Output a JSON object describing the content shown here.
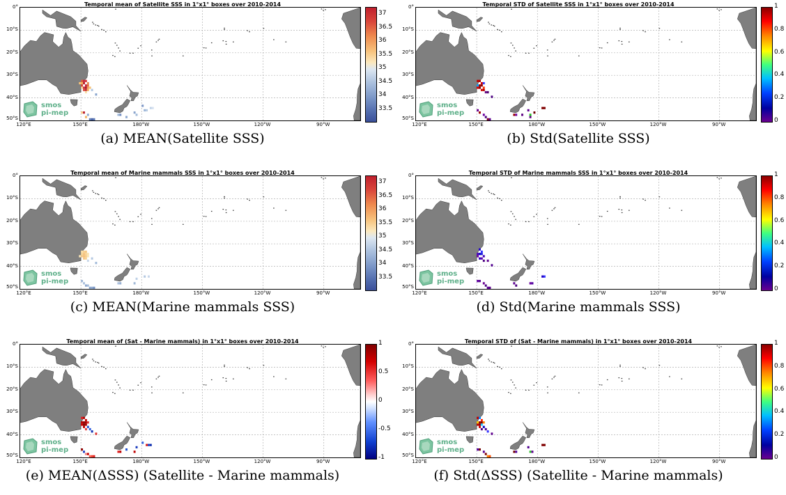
{
  "panels": [
    {
      "title": "Temporal mean of Satellite SSS in 1°x1° boxes over 2010-2014",
      "caption": "(a) MEAN(Satellite SSS)",
      "colorbar": "mean_sss",
      "ticks": [
        "37",
        "36.5",
        "36",
        "35.5",
        "35",
        "34.5",
        "34",
        "33.5"
      ],
      "cells": "a"
    },
    {
      "title": "Temporal STD of Satellite SSS in 1°x1° boxes over 2010-2014",
      "caption": "(b) Std(Satellite SSS)",
      "colorbar": "jet",
      "ticks": [
        "1",
        "0.8",
        "0.6",
        "0.4",
        "0.2",
        "0"
      ],
      "cells": "b"
    },
    {
      "title": "Temporal mean of Marine mammals SSS in 1°x1° boxes over 2010-2014",
      "caption": "(c) MEAN(Marine mammals SSS)",
      "colorbar": "mean_sss",
      "ticks": [
        "37",
        "36.5",
        "36",
        "35.5",
        "35",
        "34.5",
        "34",
        "33.5"
      ],
      "cells": "c"
    },
    {
      "title": "Temporal STD of Marine mammals SSS in 1°x1° boxes over 2010-2014",
      "caption": "(d) Std(Marine mammals SSS)",
      "colorbar": "jet",
      "ticks": [
        "1",
        "0.8",
        "0.6",
        "0.4",
        "0.2",
        "0"
      ],
      "cells": "d"
    },
    {
      "title": "Temporal mean of (Sat - Marine mammals) in 1°x1° boxes over 2010-2014",
      "caption": "(e) MEAN(ΔSSS) (Satellite - Marine mammals)",
      "colorbar": "diff",
      "ticks": [
        "1",
        "0.5",
        "0",
        "-0.5",
        "-1"
      ],
      "cells": "e"
    },
    {
      "title": "Temporal STD of (Sat - Marine mammals) in 1°x1° boxes over 2010-2014",
      "caption": "(f) Std(ΔSSS) (Satellite - Marine mammals)",
      "colorbar": "jet",
      "ticks": [
        "1",
        "0.8",
        "0.6",
        "0.4",
        "0.2",
        "0"
      ],
      "cells": "f"
    }
  ],
  "map": {
    "lat_labels": [
      "0°",
      "10°S",
      "20°S",
      "30°S",
      "40°S",
      "50°S"
    ],
    "lon_labels": [
      "120°E",
      "150°E",
      "180°W",
      "150°W",
      "120°W",
      "90°W"
    ],
    "lon_range": [
      120,
      288
    ],
    "lat_range": [
      0,
      -50
    ],
    "logo_line1": "smos",
    "logo_line2": "pi-mep"
  },
  "colors": {
    "land": "#7f7f7f",
    "grid": "#b0b0b0",
    "logo": "#5fb08a"
  }
}
